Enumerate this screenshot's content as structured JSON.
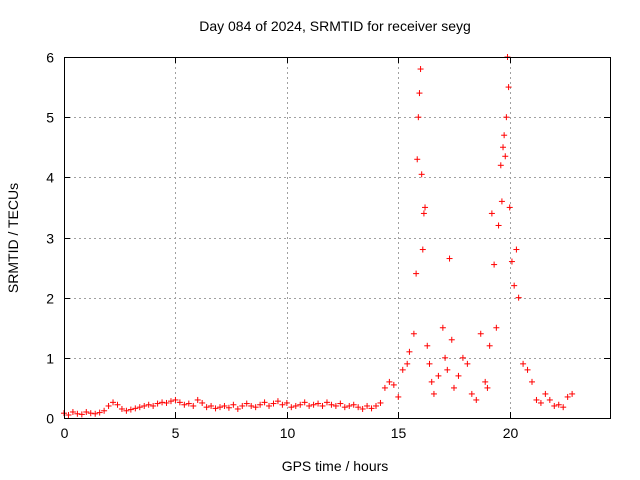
{
  "chart_data": {
    "type": "scatter",
    "title": "Day 084 of 2024, SRMTID for receiver seyg",
    "xlabel": "GPS time / hours",
    "ylabel": "SRMTID / TECUs",
    "xlim": [
      0,
      24.5
    ],
    "ylim": [
      0,
      6
    ],
    "xticks": [
      0,
      5,
      10,
      15,
      20
    ],
    "yticks": [
      0,
      1,
      2,
      3,
      4,
      5,
      6
    ],
    "grid": true,
    "marker": "plus",
    "color": "#ff0000",
    "series": [
      {
        "name": "seyg",
        "x": [
          0.0,
          0.2,
          0.4,
          0.6,
          0.8,
          1.0,
          1.2,
          1.4,
          1.6,
          1.8,
          2.0,
          2.2,
          2.4,
          2.6,
          2.8,
          3.0,
          3.2,
          3.4,
          3.6,
          3.8,
          4.0,
          4.2,
          4.4,
          4.6,
          4.8,
          5.0,
          5.2,
          5.4,
          5.6,
          5.8,
          6.0,
          6.2,
          6.4,
          6.6,
          6.8,
          7.0,
          7.2,
          7.4,
          7.6,
          7.8,
          8.0,
          8.2,
          8.4,
          8.6,
          8.8,
          9.0,
          9.2,
          9.4,
          9.6,
          9.8,
          10.0,
          10.2,
          10.4,
          10.6,
          10.8,
          11.0,
          11.2,
          11.4,
          11.6,
          11.8,
          12.0,
          12.2,
          12.4,
          12.6,
          12.8,
          13.0,
          13.2,
          13.4,
          13.6,
          13.8,
          14.0,
          14.2,
          14.4,
          14.6,
          14.8,
          15.0,
          15.2,
          15.4,
          15.5,
          15.7,
          15.8,
          15.85,
          15.9,
          15.95,
          16.0,
          16.05,
          16.1,
          16.15,
          16.2,
          16.3,
          16.4,
          16.5,
          16.6,
          16.8,
          17.0,
          17.1,
          17.2,
          17.3,
          17.4,
          17.5,
          17.7,
          17.9,
          18.1,
          18.3,
          18.5,
          18.7,
          18.9,
          19.0,
          19.1,
          19.2,
          19.3,
          19.4,
          19.5,
          19.6,
          19.65,
          19.7,
          19.75,
          19.8,
          19.85,
          19.9,
          19.95,
          20.0,
          20.1,
          20.2,
          20.3,
          20.4,
          20.6,
          20.8,
          21.0,
          21.2,
          21.4,
          21.6,
          21.8,
          22.0,
          22.2,
          22.4,
          22.6,
          22.8
        ],
        "y": [
          0.08,
          0.05,
          0.1,
          0.07,
          0.06,
          0.1,
          0.08,
          0.07,
          0.09,
          0.12,
          0.2,
          0.26,
          0.22,
          0.15,
          0.12,
          0.14,
          0.16,
          0.18,
          0.2,
          0.22,
          0.2,
          0.24,
          0.26,
          0.25,
          0.28,
          0.3,
          0.26,
          0.22,
          0.24,
          0.2,
          0.3,
          0.25,
          0.18,
          0.2,
          0.16,
          0.18,
          0.2,
          0.17,
          0.22,
          0.15,
          0.2,
          0.24,
          0.2,
          0.18,
          0.22,
          0.26,
          0.2,
          0.24,
          0.28,
          0.22,
          0.25,
          0.18,
          0.2,
          0.22,
          0.26,
          0.2,
          0.22,
          0.24,
          0.2,
          0.26,
          0.22,
          0.2,
          0.24,
          0.18,
          0.2,
          0.22,
          0.18,
          0.15,
          0.2,
          0.16,
          0.2,
          0.25,
          0.5,
          0.6,
          0.55,
          0.35,
          0.8,
          0.9,
          1.1,
          1.4,
          2.4,
          4.3,
          5.0,
          5.4,
          5.8,
          4.05,
          2.8,
          3.4,
          3.5,
          1.2,
          0.9,
          0.6,
          0.4,
          0.7,
          1.5,
          1.0,
          0.8,
          2.65,
          1.3,
          0.5,
          0.7,
          1.0,
          0.9,
          0.4,
          0.3,
          1.4,
          0.6,
          0.5,
          1.2,
          3.4,
          2.55,
          1.5,
          3.2,
          4.2,
          3.6,
          4.5,
          4.7,
          4.35,
          5.0,
          6.0,
          5.5,
          3.5,
          2.6,
          2.2,
          2.8,
          2.0,
          0.9,
          0.8,
          0.6,
          0.3,
          0.25,
          0.4,
          0.3,
          0.2,
          0.22,
          0.18,
          0.35,
          0.4
        ]
      }
    ]
  }
}
